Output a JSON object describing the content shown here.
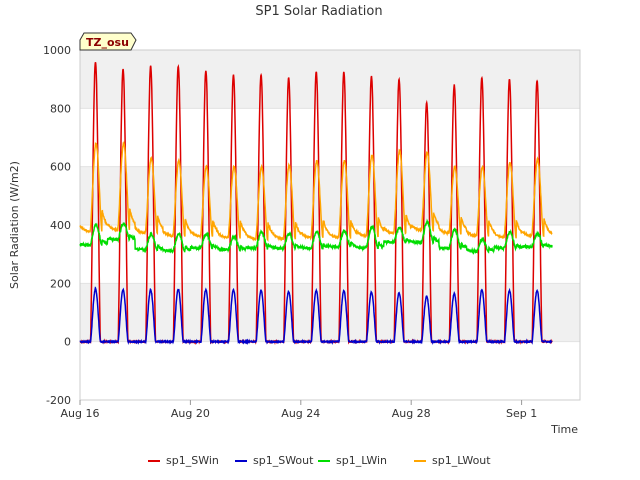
{
  "chart_data": {
    "type": "line",
    "title": "SP1 Solar Radiation",
    "badge": "TZ_osu",
    "xlabel": "Time",
    "ylabel": "Solar Radiation (W/m2)",
    "ylim": [
      -200,
      1000
    ],
    "yticks": [
      -200,
      0,
      200,
      400,
      600,
      800,
      1000
    ],
    "xlim": [
      "2023-08-16",
      "2023-09-03"
    ],
    "xticks": [
      {
        "date": "2023-08-16",
        "label": "Aug 16"
      },
      {
        "date": "2023-08-20",
        "label": "Aug 20"
      },
      {
        "date": "2023-08-24",
        "label": "Aug 24"
      },
      {
        "date": "2023-08-28",
        "label": "Aug 28"
      },
      {
        "date": "2023-09-01",
        "label": "Sep 1"
      }
    ],
    "grid": true,
    "legend_position": "bottom",
    "x": [
      "2023-08-16",
      "2023-08-17",
      "2023-08-18",
      "2023-08-19",
      "2023-08-20",
      "2023-08-21",
      "2023-08-22",
      "2023-08-23",
      "2023-08-24",
      "2023-08-25",
      "2023-08-26",
      "2023-08-27",
      "2023-08-28",
      "2023-08-29",
      "2023-08-30",
      "2023-08-31",
      "2023-09-01",
      "2023-09-02"
    ],
    "series": [
      {
        "name": "sp1_SWin",
        "color": "#dd0000",
        "peaks": [
          960,
          935,
          945,
          945,
          930,
          915,
          915,
          905,
          925,
          925,
          910,
          900,
          820,
          880,
          905,
          900,
          895,
          null
        ]
      },
      {
        "name": "sp1_SWout",
        "color": "#0000cc",
        "peaks": [
          180,
          178,
          178,
          180,
          178,
          178,
          175,
          172,
          175,
          175,
          170,
          168,
          155,
          165,
          178,
          175,
          175,
          null
        ]
      },
      {
        "name": "sp1_LWin",
        "color": "#00dd00",
        "night": [
          330,
          350,
          315,
          310,
          320,
          315,
          320,
          320,
          320,
          325,
          320,
          340,
          340,
          320,
          310,
          320,
          325,
          null
        ],
        "day": [
          400,
          405,
          370,
          370,
          370,
          360,
          375,
          370,
          375,
          380,
          395,
          390,
          410,
          385,
          350,
          375,
          370,
          null
        ]
      },
      {
        "name": "sp1_LWout",
        "color": "#ffa500",
        "night": [
          375,
          380,
          370,
          360,
          360,
          355,
          350,
          350,
          355,
          355,
          360,
          370,
          380,
          370,
          360,
          355,
          360,
          null
        ],
        "day": [
          680,
          680,
          630,
          620,
          600,
          600,
          600,
          605,
          620,
          620,
          640,
          655,
          650,
          600,
          600,
          615,
          625,
          null
        ]
      }
    ]
  }
}
